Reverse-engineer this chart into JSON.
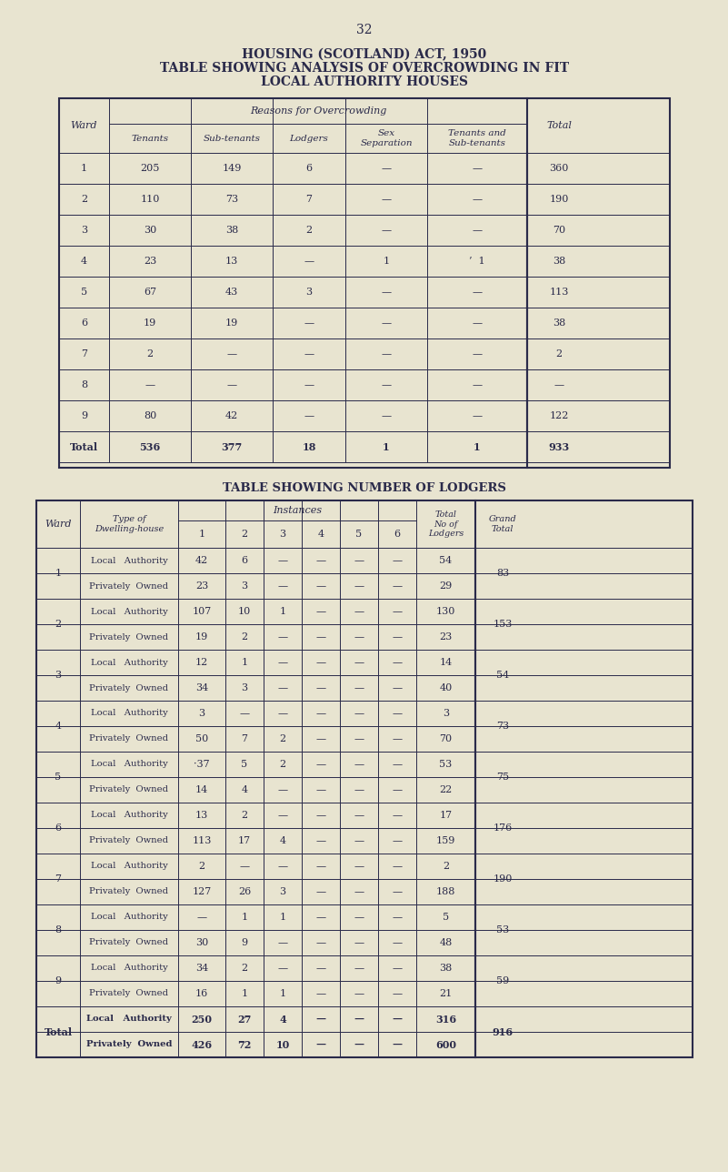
{
  "page_number": "32",
  "title_line1": "HOUSING (SCOTLAND) ACT, 1950",
  "title_line2": "TABLE SHOWING ANALYSIS OF OVERCROWDING IN FIT",
  "title_line3": "LOCAL AUTHORITY HOUSES",
  "bg_color": "#e8e4d0",
  "text_color": "#2a2a4a",
  "table1_title": "TABLE SHOWING ANALYSIS OF OVERCROWDING IN FIT LOCAL AUTHORITY HOUSES",
  "table1_header_reasons": "Reasons for Overcrowding",
  "table1_header_total": "Total",
  "table1_col_headers": [
    "Tenants",
    "Sub-tenants",
    "Lodgers",
    "Sex\nSeparation",
    "Tenants and\nSub-tenants"
  ],
  "table1_ward_col": "Ward",
  "table1_rows": [
    [
      "1",
      "205",
      "149",
      "6",
      "—",
      "—",
      "360"
    ],
    [
      "2",
      "110",
      "73",
      "7",
      "—",
      "—",
      "190"
    ],
    [
      "3",
      "30",
      "38",
      "2",
      "—",
      "—",
      "70"
    ],
    [
      "4",
      "23",
      "13",
      "—",
      "1",
      "’  1",
      "38"
    ],
    [
      "5",
      "67",
      "43",
      "3",
      "—",
      "—",
      "113"
    ],
    [
      "6",
      "19",
      "19",
      "—",
      "—",
      "—",
      "38"
    ],
    [
      "7",
      "2",
      "—",
      "—",
      "—",
      "—",
      "2"
    ],
    [
      "8",
      "—",
      "—",
      "—",
      "—",
      "—",
      "—"
    ],
    [
      "9",
      "80",
      "42",
      "—",
      "—",
      "—",
      "122"
    ],
    [
      "Total",
      "536",
      "377",
      "18",
      "1",
      "1",
      "933"
    ]
  ],
  "table2_title": "TABLE SHOWING NUMBER OF LODGERS",
  "table2_ward_col": "Ward",
  "table2_type_col": "Type of\nDwelling-house",
  "table2_instances_header": "Instances",
  "table2_instances_cols": [
    "1",
    "2",
    "3",
    "4",
    "5",
    "6"
  ],
  "table2_total_header": "Total\nNo of\nLodgers",
  "table2_grand_header": "Grand\nTotal",
  "table2_rows": [
    [
      "1",
      "Local   Authority",
      "42",
      "6",
      "—",
      "—",
      "—",
      "—",
      "54",
      "83"
    ],
    [
      "1",
      "Privately  Owned",
      "23",
      "3",
      "—",
      "—",
      "—",
      "—",
      "29",
      ""
    ],
    [
      "2",
      "Local   Authority",
      "107",
      "10",
      "1",
      "—",
      "—",
      "—",
      "130",
      "153"
    ],
    [
      "2",
      "Privately  Owned",
      "19",
      "2",
      "—",
      "—",
      "—",
      "—",
      "23",
      ""
    ],
    [
      "3",
      "Local   Authority",
      "12",
      "1",
      "—",
      "—",
      "—",
      "—",
      "14",
      "54"
    ],
    [
      "3",
      "Privately  Owned",
      "34",
      "3",
      "—",
      "—",
      "—",
      "—",
      "40",
      ""
    ],
    [
      "4",
      "Local   Authority",
      "3",
      "—",
      "—",
      "—",
      "—",
      "—",
      "3",
      "73"
    ],
    [
      "4",
      "Privately  Owned",
      "50",
      "7",
      "2",
      "—",
      "—",
      "—",
      "70",
      ""
    ],
    [
      "5",
      "Local   Authority",
      "·37",
      "5",
      "2",
      "—",
      "—",
      "—",
      "53",
      "75"
    ],
    [
      "5",
      "Privately  Owned",
      "14",
      "4",
      "—",
      "—",
      "—",
      "—",
      "22",
      ""
    ],
    [
      "6",
      "Local   Authority",
      "13",
      "2",
      "—",
      "—",
      "—",
      "—",
      "17",
      "176"
    ],
    [
      "6",
      "Privately  Owned",
      "113",
      "17",
      "4",
      "—",
      "—",
      "—",
      "159",
      ""
    ],
    [
      "7",
      "Local   Authority",
      "2",
      "—",
      "—",
      "—",
      "—",
      "—",
      "2",
      "190"
    ],
    [
      "7",
      "Privately  Owned",
      "127",
      "26",
      "3",
      "—",
      "—",
      "—",
      "188",
      ""
    ],
    [
      "8",
      "Local   Authority",
      "—",
      "1",
      "1",
      "—",
      "—",
      "—",
      "5",
      "53"
    ],
    [
      "8",
      "Privately  Owned",
      "30",
      "9",
      "—",
      "—",
      "—",
      "—",
      "48",
      ""
    ],
    [
      "9",
      "Local   Authority",
      "34",
      "2",
      "—",
      "—",
      "—",
      "—",
      "38",
      "59"
    ],
    [
      "9",
      "Privately  Owned",
      "16",
      "1",
      "1",
      "—",
      "—",
      "—",
      "21",
      ""
    ],
    [
      "Total",
      "Local   Authority",
      "250",
      "27",
      "4",
      "—",
      "—",
      "—",
      "316",
      "916"
    ],
    [
      "Total",
      "Privately  Owned",
      "426",
      "72",
      "10",
      "—",
      "—",
      "—",
      "600",
      ""
    ]
  ]
}
